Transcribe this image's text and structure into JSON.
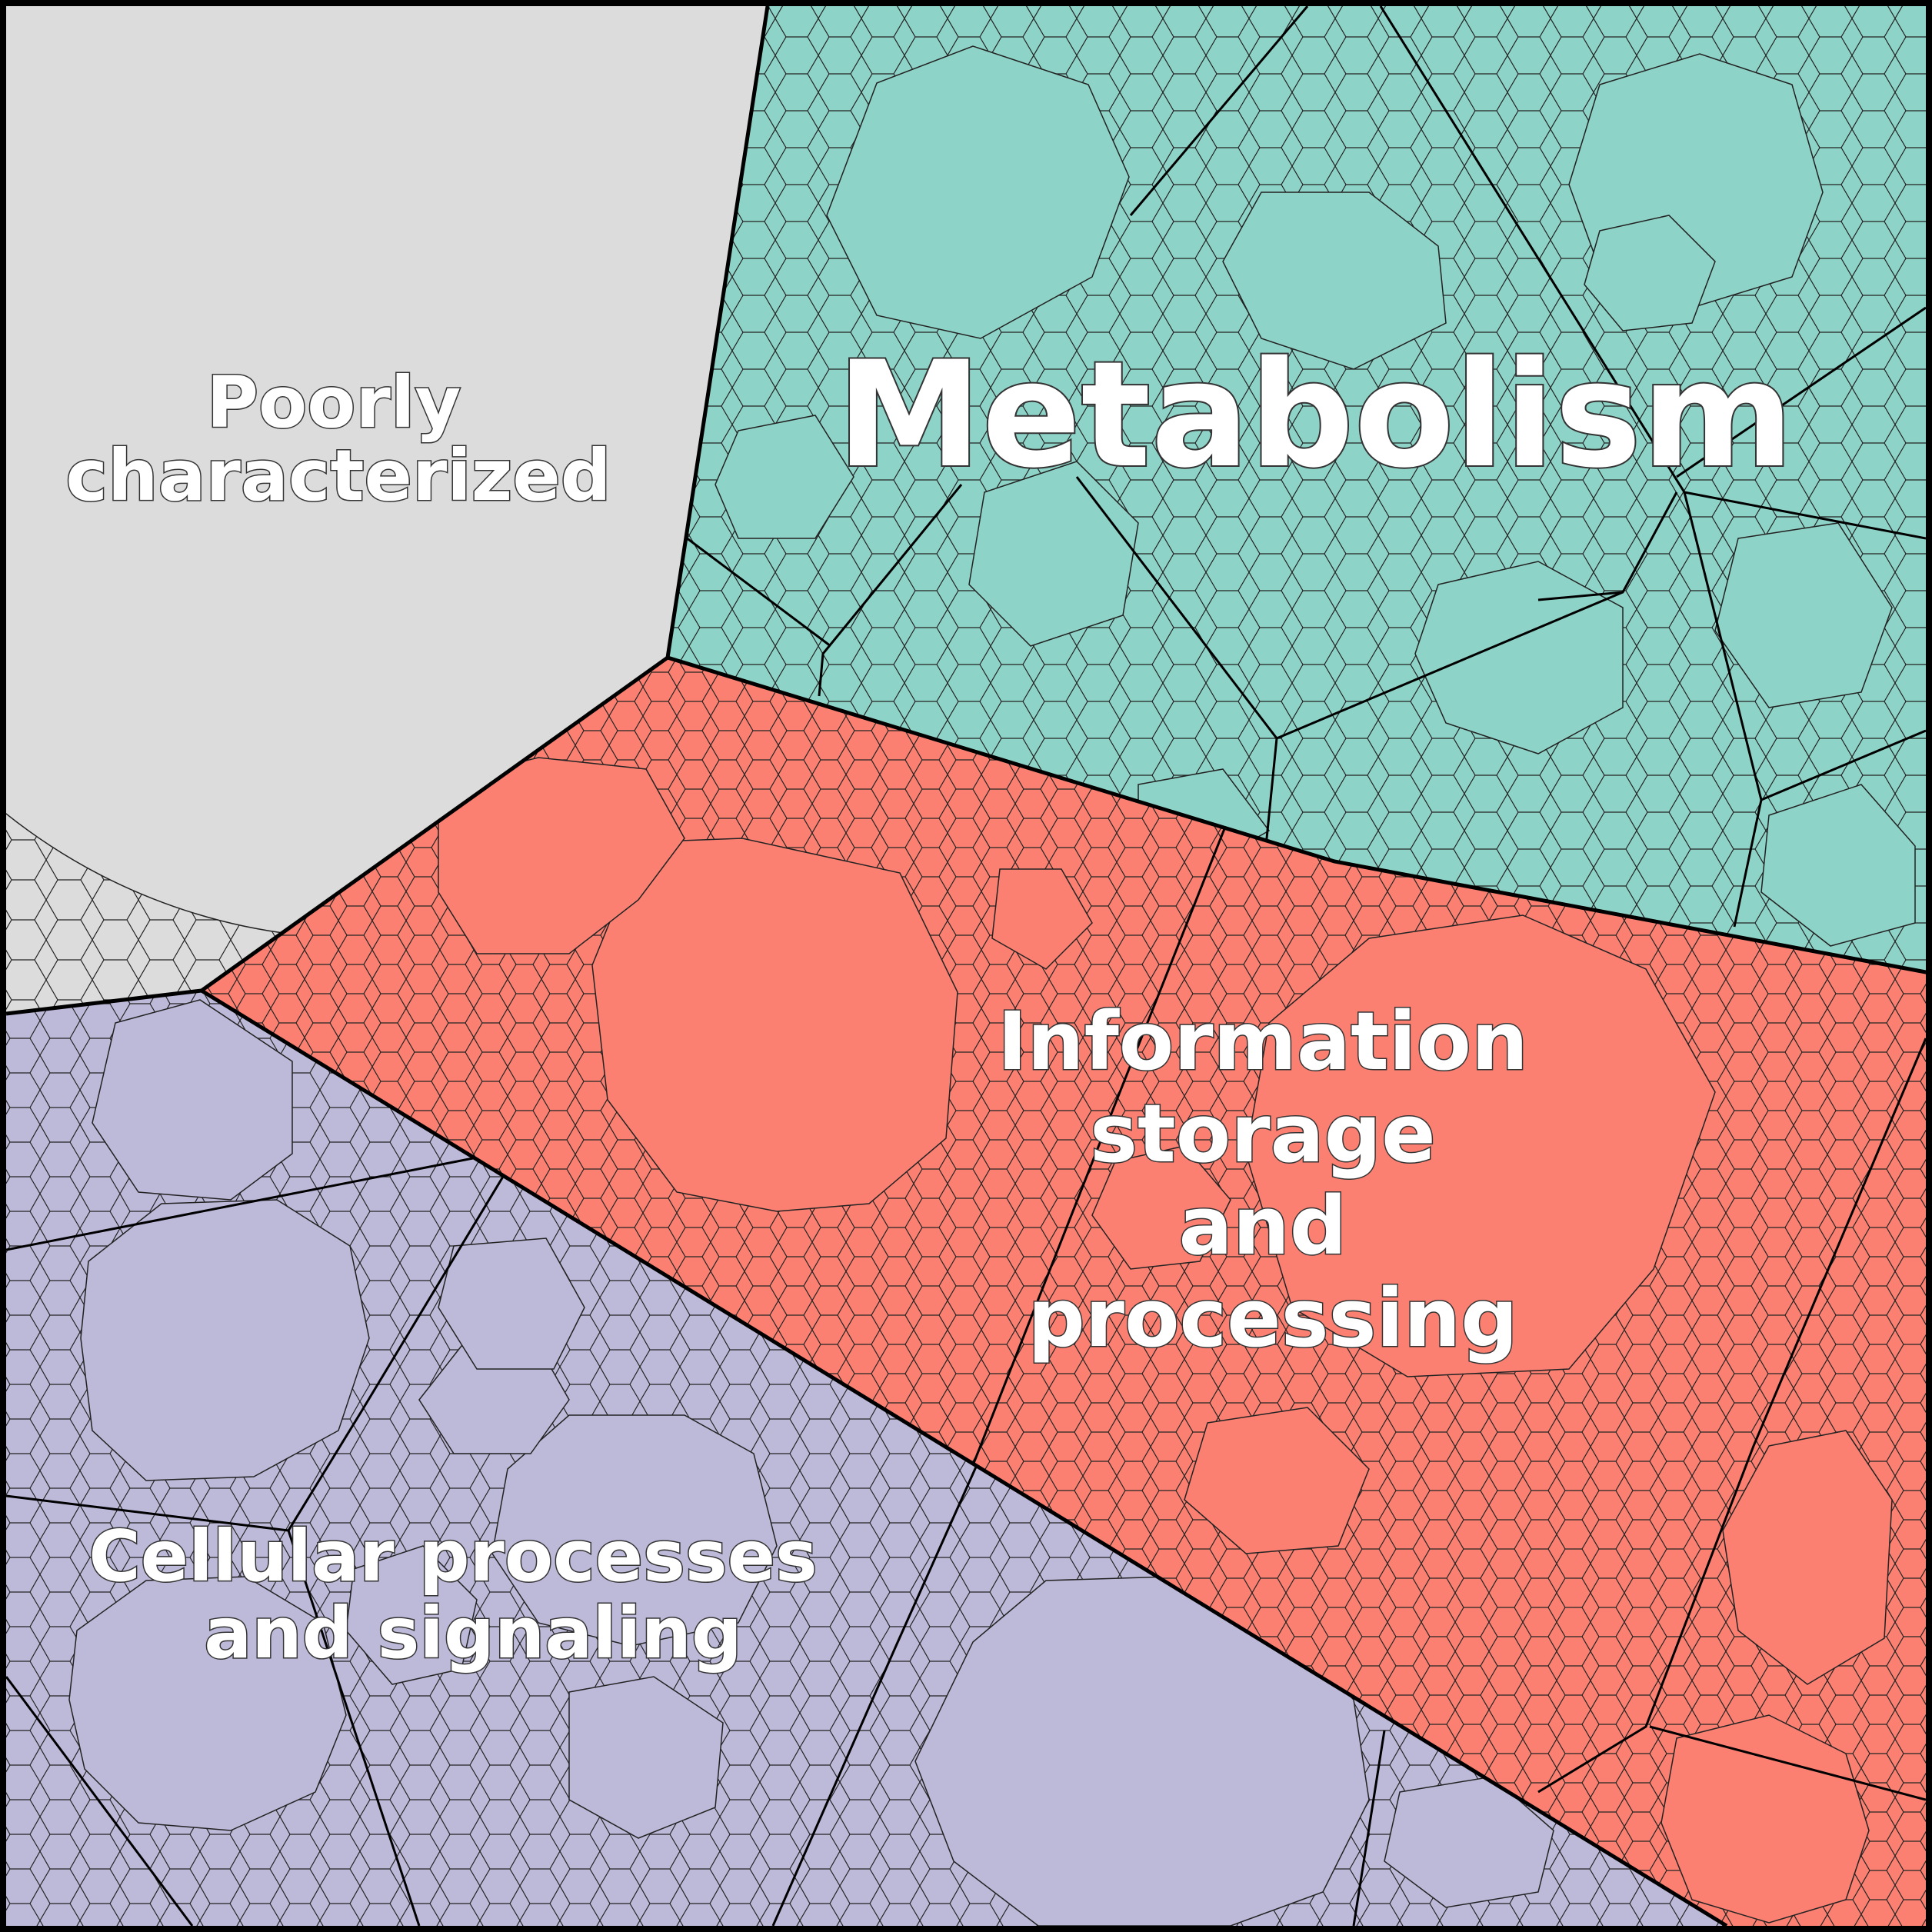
{
  "diagram": {
    "type": "voronoi-treemap",
    "categories": [
      {
        "key": "poorly",
        "label_lines": [
          "Poorly",
          "characterized"
        ],
        "color": "#dcdcdc"
      },
      {
        "key": "metabolism",
        "label_lines": [
          "Metabolism"
        ],
        "color": "#8ed3c7"
      },
      {
        "key": "information",
        "label_lines": [
          "Information",
          "storage",
          "and",
          "processing"
        ],
        "color": "#fb8072"
      },
      {
        "key": "cellular",
        "label_lines": [
          "Cellular processes",
          "and signaling"
        ],
        "color": "#bdb9d9"
      }
    ],
    "cell_stroke_color": "#1a1a1a",
    "border_color": "#000000"
  }
}
